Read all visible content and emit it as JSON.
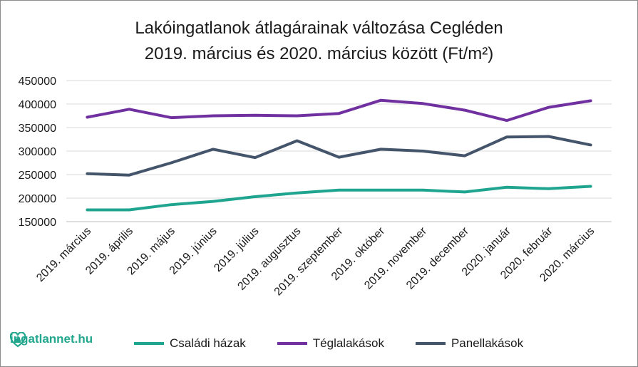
{
  "chart_data": {
    "type": "line",
    "title_line1": "Lakóingatlanok átlagárainak változása Cegléden",
    "title_line2": "2019. március és 2020. március között (Ft/m²)",
    "categories": [
      "2019. március",
      "2019. április",
      "2019. május",
      "2019. június",
      "2019. július",
      "2019. augusztus",
      "2019. szeptember",
      "2019. október",
      "2019. november",
      "2019. december",
      "2020. január",
      "2020. február",
      "2020. március"
    ],
    "ylim": [
      150000,
      450000
    ],
    "yticks": [
      "150000",
      "200000",
      "250000",
      "300000",
      "350000",
      "400000",
      "450000"
    ],
    "grid": true,
    "legend_position": "bottom",
    "series": [
      {
        "name": "Családi házak",
        "color": "#1fa58f",
        "values": [
          175000,
          175000,
          186000,
          193000,
          203000,
          211000,
          217000,
          217000,
          217000,
          213000,
          223000,
          220000,
          225000
        ]
      },
      {
        "name": "Téglalakások",
        "color": "#7030a0",
        "values": [
          372000,
          389000,
          371000,
          375000,
          376000,
          375000,
          380000,
          408000,
          401000,
          387000,
          365000,
          393000,
          407000
        ]
      },
      {
        "name": "Panellakások",
        "color": "#44546a",
        "values": [
          252000,
          249000,
          275000,
          304000,
          286000,
          322000,
          287000,
          304000,
          300000,
          290000,
          330000,
          331000,
          313000
        ]
      }
    ]
  },
  "branding": {
    "logo_text": "ingatlannet.hu",
    "logo_color": "#22a68e"
  }
}
